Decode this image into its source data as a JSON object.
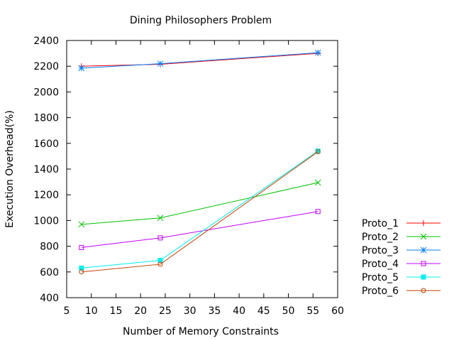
{
  "chart_data": {
    "type": "line",
    "title": "Dining Philosophers Problem",
    "xlabel": "Number of Memory Constraints",
    "ylabel": "Execution Overhead(%)",
    "xlim": [
      5,
      60
    ],
    "ylim": [
      400,
      2400
    ],
    "xticks": [
      5,
      10,
      15,
      20,
      25,
      30,
      35,
      40,
      45,
      50,
      55,
      60
    ],
    "yticks": [
      400,
      600,
      800,
      1000,
      1200,
      1400,
      1600,
      1800,
      2000,
      2200,
      2400
    ],
    "grid": false,
    "legend": "right",
    "x": [
      8,
      24,
      56
    ],
    "series": [
      {
        "name": "Proto_1",
        "values": [
          2200,
          2215,
          2300
        ],
        "color": "#ff0000",
        "marker": "plus"
      },
      {
        "name": "Proto_2",
        "values": [
          970,
          1020,
          1295
        ],
        "color": "#00c000",
        "marker": "cross"
      },
      {
        "name": "Proto_3",
        "values": [
          2185,
          2220,
          2305
        ],
        "color": "#0080ff",
        "marker": "star"
      },
      {
        "name": "Proto_4",
        "values": [
          790,
          865,
          1070
        ],
        "color": "#c000ff",
        "marker": "square-open"
      },
      {
        "name": "Proto_5",
        "values": [
          630,
          690,
          1540
        ],
        "color": "#00eeee",
        "marker": "square-filled"
      },
      {
        "name": "Proto_6",
        "values": [
          600,
          660,
          1535
        ],
        "color": "#c04000",
        "marker": "circle-open"
      }
    ]
  }
}
